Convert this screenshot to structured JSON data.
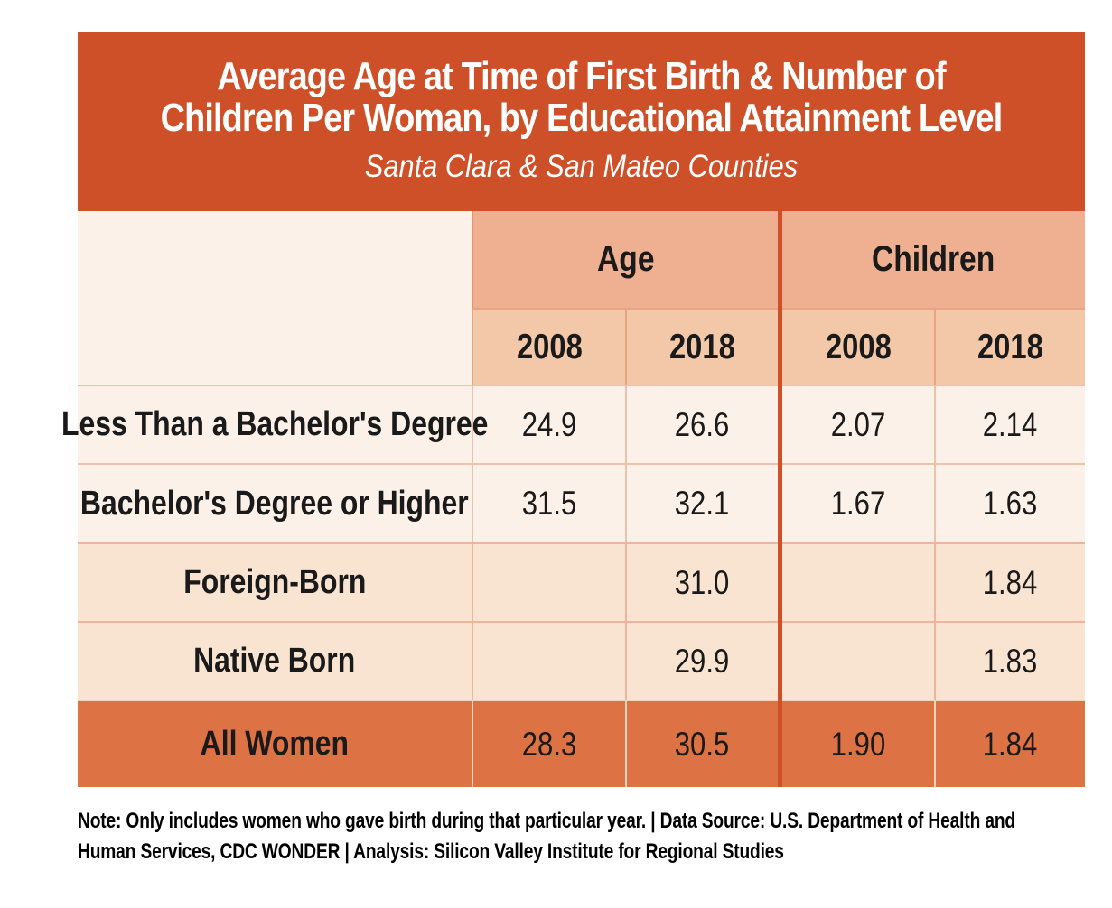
{
  "header": {
    "title_line1": "Average Age at Time of First Birth & Number of",
    "title_line2": "Children Per Woman, by Educational Attainment Level",
    "subtitle": "Santa Clara & San Mateo Counties"
  },
  "chart_data": {
    "type": "table",
    "title": "Average Age at Time of First Birth & Number of Children Per Woman, by Educational Attainment Level",
    "subtitle": "Santa Clara & San Mateo Counties",
    "column_groups": [
      "Age",
      "Children"
    ],
    "columns": [
      "2008",
      "2018",
      "2008",
      "2018"
    ],
    "rows": [
      {
        "label": "Less Than a Bachelor's Degree",
        "values": [
          "24.9",
          "26.6",
          "2.07",
          "2.14"
        ]
      },
      {
        "label": "Bachelor's Degree or Higher",
        "values": [
          "31.5",
          "32.1",
          "1.67",
          "1.63"
        ]
      },
      {
        "label": "Foreign-Born",
        "values": [
          "",
          "31.0",
          "",
          "1.84"
        ]
      },
      {
        "label": "Native Born",
        "values": [
          "",
          "29.9",
          "",
          "1.83"
        ]
      },
      {
        "label": "All Women",
        "values": [
          "28.3",
          "30.5",
          "1.90",
          "1.84"
        ]
      }
    ],
    "note": "Note: Only includes women who gave birth during that particular year.  |  Data Source: U.S. Department of Health and Human Services, CDC WONDER  |  Analysis: Silicon Valley Institute for Regional Studies"
  },
  "colors": {
    "title_block_bg": "#ce5028",
    "group_header_bg": "#eeb090",
    "year_header_bg": "#f3c8a9",
    "row_light_bg": "#fcf1e8",
    "row_mid_bg": "#f9e3d1",
    "row_total_bg": "#dd7244",
    "group_divider": "#ce5028",
    "title_text": "#ffffff",
    "body_text": "#1a1a1a"
  }
}
